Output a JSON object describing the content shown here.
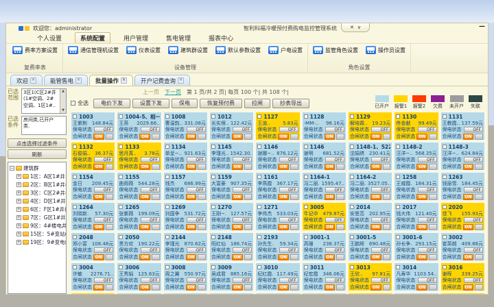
{
  "window": {
    "welcome_label": "欢迎您：",
    "username": "administrator",
    "title": "智利科福冷暖预付费购电监控管理系统",
    "restore_glyph": "✕",
    "dropdown_glyph": "∨",
    "minimize_glyph": "—"
  },
  "menu": {
    "items": [
      {
        "label": "个人设置",
        "active": false
      },
      {
        "label": "系统配置",
        "active": true
      },
      {
        "label": "用户管理",
        "active": false
      },
      {
        "label": "售电管理",
        "active": false
      },
      {
        "label": "报表中心",
        "active": false
      }
    ]
  },
  "ribbon": {
    "groups": [
      {
        "label": "复费率表",
        "buttons": [
          "费率方案设置"
        ]
      },
      {
        "label": "设备管理",
        "buttons": [
          "通信管理机设置",
          "仪表设置",
          "建筑群设置",
          "默认参数设置",
          "户电设置"
        ]
      },
      {
        "label": "角色设置",
        "buttons": [
          "监管角色设置",
          "操作员设置"
        ]
      }
    ]
  },
  "tabs": {
    "close_glyph": "×",
    "items": [
      {
        "label": "欢迎",
        "active": false
      },
      {
        "label": "能管售电",
        "active": false
      },
      {
        "label": "批量操作",
        "active": true
      },
      {
        "label": "开户记费查询",
        "active": false
      }
    ]
  },
  "sidebar": {
    "range_label": "已选范围",
    "range_lines": [
      "3区1(C区2#井",
      "(1#空调、2#",
      "空调、1区1#.."
    ],
    "cond_label": "已选条件",
    "cond_lines": [
      "房间类,已开户",
      "类."
    ],
    "scroll_up": "▲",
    "scroll_down": "▼",
    "filter_button": "点击选择过滤条件",
    "refresh_button": "刷新",
    "tree_root": "建筑群",
    "root_expander": "−",
    "child_expander": "+",
    "tree_items": [
      "1区：A区1#井",
      "2区：B区1#井(B区1..",
      "3区：C区2#井(1#..",
      "4区：D区1#井(D区..",
      "6区：F区1#井(F区..",
      "7区：G区1#井",
      "9区：4#楼电井(4#..",
      "15区：5#变站(3#..",
      "19区：9#变电站(2.."
    ]
  },
  "toolbar": {
    "prev": "上一页",
    "next": "下一页",
    "page_info": "第 1 页/共 2 页| 每页 100 个| 共 108 个|",
    "select_all": "全选",
    "buttons": [
      "电价下发",
      "设置下发",
      "保电",
      "恢复预付费",
      "拉闸",
      "抄表导出"
    ]
  },
  "legend": [
    {
      "label": "已开户",
      "color": "#b5dbe9"
    },
    {
      "label": "报警1",
      "color": "#ffd400"
    },
    {
      "label": "报警2",
      "color": "#fd3b01"
    },
    {
      "label": "欠费",
      "color": "#8d1f96"
    },
    {
      "label": "未开户",
      "color": "#9c9c9c"
    },
    {
      "label": "失联",
      "color": "#2b4746"
    }
  ],
  "card_labels": {
    "keep": "保电状态",
    "gate": "合闸状态",
    "off": "OFF",
    "on": "ON"
  },
  "status_colors": {
    "open": "#b5d9e6",
    "alarm1": "#ffd400"
  },
  "cards": [
    {
      "no": "1003",
      "name": "王紫荆",
      "amount": "148.84元",
      "status": "open"
    },
    {
      "no": "1004-5、相一",
      "name": "王英",
      "amount": "2029.66..",
      "status": "open"
    },
    {
      "no": "1008",
      "name": "曹温韵..",
      "amount": "331.08元",
      "status": "open"
    },
    {
      "no": "1012",
      "name": "长实保..",
      "amount": "122.42元",
      "status": "open"
    },
    {
      "no": "1127",
      "name": "王迪..",
      "amount": "5.83元",
      "status": "alarm1"
    },
    {
      "no": "1128",
      "name": "-MM-..",
      "amount": "98.16元",
      "status": "open"
    },
    {
      "no": "1129",
      "name": "解培霖..",
      "amount": "19.23元",
      "status": "alarm1"
    },
    {
      "no": "1130",
      "name": "佟金献",
      "amount": "99.49元",
      "status": "alarm1"
    },
    {
      "no": "1131",
      "name": "王教霞..",
      "amount": "137.59元",
      "status": "open"
    },
    {
      "no": "1132",
      "name": "石俊娟..",
      "amount": "36.37元",
      "status": "alarm1"
    },
    {
      "no": "1133",
      "name": "思月真..",
      "amount": "3.78元",
      "status": "alarm1"
    },
    {
      "no": "1134",
      "name": "单呈~..",
      "amount": "921.63元",
      "status": "open"
    },
    {
      "no": "1145",
      "name": "李瑾光..",
      "amount": "1542.30..",
      "status": "open"
    },
    {
      "no": "1146",
      "name": "谢娜~..",
      "amount": "876.12元",
      "status": "open"
    },
    {
      "no": "1146",
      "name": "谢明",
      "amount": "681.52元",
      "status": "open"
    },
    {
      "no": "1148-1、522",
      "name": "沈娟绣",
      "amount": "230.41元",
      "status": "open"
    },
    {
      "no": "1148-2",
      "name": "汪洋~..",
      "amount": "568.35元",
      "status": "open"
    },
    {
      "no": "1148-3",
      "name": "汪洋~..",
      "amount": "624.84元",
      "status": "open"
    },
    {
      "no": "1154",
      "name": "金日",
      "amount": "209.45元",
      "status": "open"
    },
    {
      "no": "1155",
      "name": "曲雨薇",
      "amount": "544.28元",
      "status": "open"
    },
    {
      "no": "1157",
      "name": "钱杰",
      "amount": "686.99元",
      "status": "open"
    },
    {
      "no": "1159",
      "name": "大富豪",
      "amount": "907.35元",
      "status": "open"
    },
    {
      "no": "1161",
      "name": "李燕霞",
      "amount": "367.17元",
      "status": "open"
    },
    {
      "no": "1164-1",
      "name": "冯二丽.",
      "amount": "1595.47..",
      "status": "open"
    },
    {
      "no": "1164-2",
      "name": "冯二丽.",
      "amount": "3527.05..",
      "status": "open"
    },
    {
      "no": "1258",
      "name": "王威霞.",
      "amount": "184.31元",
      "status": "open"
    },
    {
      "no": "1263",
      "name": "钱丽雪.",
      "amount": "184.45元",
      "status": "open"
    },
    {
      "no": "1264",
      "name": "刘晓新.",
      "amount": "57.30元",
      "status": "open"
    },
    {
      "no": "1265",
      "name": "张紫薇",
      "amount": "199.09元",
      "status": "open"
    },
    {
      "no": "1269",
      "name": "刘国争",
      "amount": "531.72元",
      "status": "open"
    },
    {
      "no": "1270",
      "name": "王刚~.",
      "amount": "127.57元",
      "status": "open"
    },
    {
      "no": "1271",
      "name": "李伟杰",
      "amount": "533.03元",
      "status": "open"
    },
    {
      "no": "3005",
      "name": "牛记中",
      "amount": "479.87元",
      "status": "alarm1"
    },
    {
      "no": "2014",
      "name": "安思范",
      "amount": "202.95元",
      "status": "open"
    },
    {
      "no": "2017",
      "name": "钱大伟",
      "amount": "121.40元",
      "status": "open"
    },
    {
      "no": "2020",
      "name": "佳飞",
      "amount": "155.93元",
      "status": "alarm1"
    },
    {
      "no": "2048",
      "name": "郑小富",
      "amount": "108.48元",
      "status": "open"
    },
    {
      "no": "2050",
      "name": "贵方欢",
      "amount": "190.22元",
      "status": "open"
    },
    {
      "no": "2144",
      "name": "李瑾光",
      "amount": "870.62元",
      "status": "open"
    },
    {
      "no": "2148",
      "name": "阳红仙",
      "amount": "186.74元",
      "status": "open"
    },
    {
      "no": "2193",
      "name": "孙先生.",
      "amount": "59.34元",
      "status": "open"
    },
    {
      "no": "3001-1",
      "name": "高珊",
      "amount": "238.37元",
      "status": "open"
    },
    {
      "no": "3001-5",
      "name": "王鹏辉",
      "amount": "690.48元",
      "status": "open"
    },
    {
      "no": "3001-6",
      "name": "孙长争.",
      "amount": "293.15元",
      "status": "open"
    },
    {
      "no": "3002",
      "name": "崔英越",
      "amount": "409.88元",
      "status": "open"
    },
    {
      "no": "3004",
      "name": "许敏",
      "amount": "2276.71..",
      "status": "open"
    },
    {
      "no": "3006",
      "name": "王秀娟",
      "amount": "125.83元",
      "status": "open"
    },
    {
      "no": "3008",
      "name": "周之翼",
      "amount": "550.97元",
      "status": "open"
    },
    {
      "no": "3009",
      "name": "吴成君",
      "amount": "885.16元",
      "status": "open"
    },
    {
      "no": "3010",
      "name": "纪红霞.",
      "amount": "117.49元",
      "status": "open"
    },
    {
      "no": "3011",
      "name": "纪宏霞",
      "amount": "346.06元",
      "status": "open"
    },
    {
      "no": "3013",
      "name": "王欣..",
      "amount": "97.81元",
      "status": "alarm1"
    },
    {
      "no": "3014",
      "name": "凡寿华",
      "amount": "1103.54..",
      "status": "open"
    },
    {
      "no": "3016",
      "name": "谢晖",
      "amount": "339.25元",
      "status": "alarm1"
    }
  ],
  "partial_row": [
    "alarm1",
    "open",
    "open",
    "open",
    "open",
    "open",
    "alarm1",
    "open",
    "alarm1"
  ]
}
